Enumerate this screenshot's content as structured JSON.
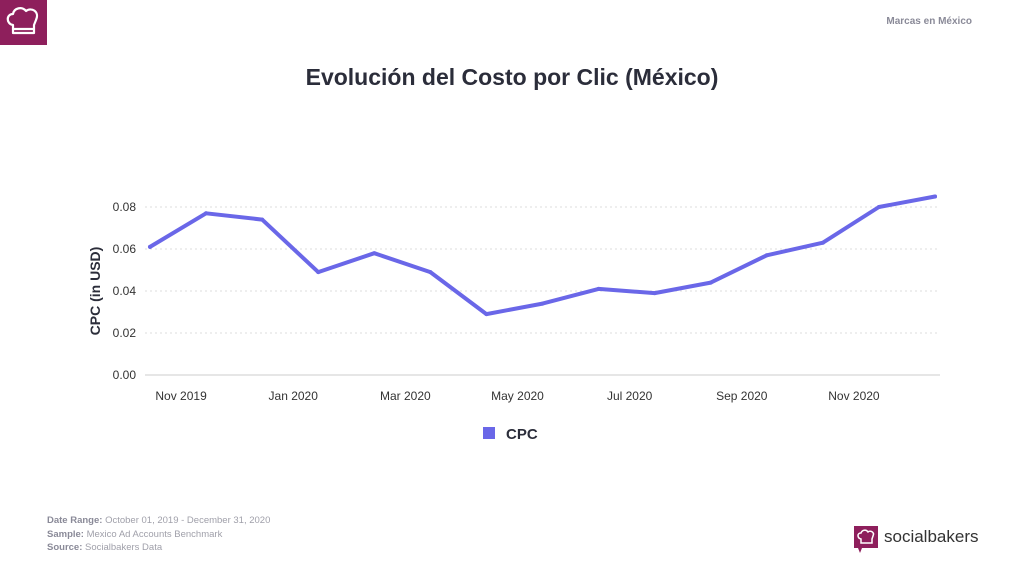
{
  "header": {
    "right_text": "Marcas en México"
  },
  "chart_data": {
    "type": "line",
    "title": "Evolución del Costo por Clic (México)",
    "ylabel": "CPC (in USD)",
    "xlabel": "",
    "x": [
      "Oct 2019",
      "Nov 2019",
      "Dec 2019",
      "Jan 2020",
      "Feb 2020",
      "Mar 2020",
      "Apr 2020",
      "May 2020",
      "Jun 2020",
      "Jul 2020",
      "Aug 2020",
      "Sep 2020",
      "Oct 2020",
      "Nov 2020",
      "Dec 2020"
    ],
    "x_tick_labels": [
      "Nov 2019",
      "Jan 2020",
      "Mar 2020",
      "May 2020",
      "Jul 2020",
      "Sep 2020",
      "Nov 2020"
    ],
    "y_tick_labels": [
      "0.00",
      "0.02",
      "0.04",
      "0.06",
      "0.08"
    ],
    "ylim": [
      0,
      0.08
    ],
    "grid": "horizontal dotted",
    "legend": "bottom-center",
    "series": [
      {
        "name": "CPC",
        "color": "#6a67e8",
        "values": [
          0.061,
          0.077,
          0.074,
          0.049,
          0.058,
          0.049,
          0.029,
          0.034,
          0.041,
          0.039,
          0.044,
          0.057,
          0.063,
          0.08,
          0.085
        ]
      }
    ]
  },
  "footer": {
    "date_range_label": "Date Range:",
    "date_range": "October 01, 2019 - December 31, 2020",
    "sample_label": "Sample:",
    "sample": "Mexico Ad Accounts Benchmark",
    "source_label": "Source:",
    "source": "Socialbakers Data"
  },
  "brand": {
    "name": "socialbakers",
    "color": "#8e1f5c"
  }
}
